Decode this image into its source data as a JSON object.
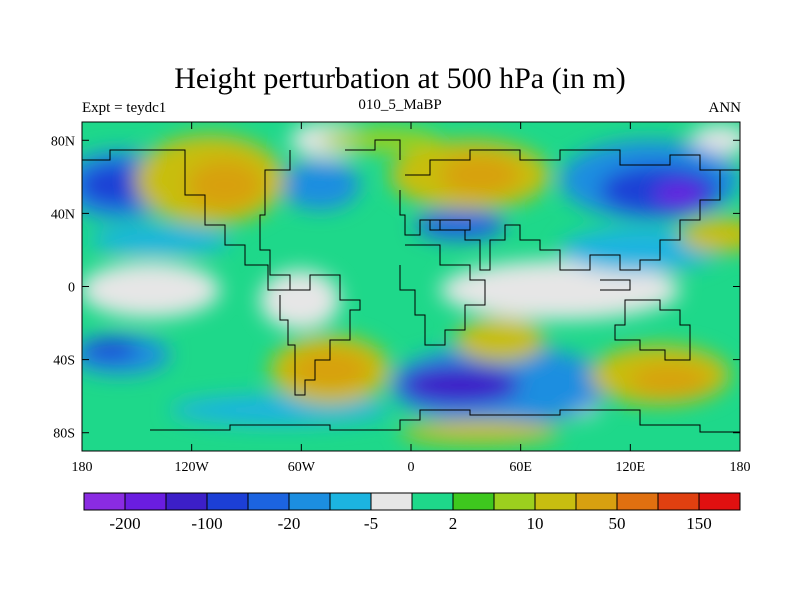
{
  "title": "Height perturbation at 500 hPa (in m)",
  "left_label": "Expt = teydc1",
  "center_label": "010_5_MaBP",
  "right_label": "ANN",
  "map": {
    "lon_range": [
      -180,
      180
    ],
    "lat_range": [
      -90,
      90
    ],
    "x_ticks": [
      {
        "value": -180,
        "label": "180"
      },
      {
        "value": -120,
        "label": "120W"
      },
      {
        "value": -60,
        "label": "60W"
      },
      {
        "value": 0,
        "label": "0"
      },
      {
        "value": 60,
        "label": "60E"
      },
      {
        "value": 120,
        "label": "120E"
      },
      {
        "value": 180,
        "label": "180"
      }
    ],
    "y_ticks": [
      {
        "value": 80,
        "label": "80N"
      },
      {
        "value": 40,
        "label": "40N"
      },
      {
        "value": 0,
        "label": "0"
      },
      {
        "value": -40,
        "label": "40S"
      },
      {
        "value": -80,
        "label": "80S"
      }
    ]
  },
  "colorbar": {
    "colors": [
      "#8a2be2",
      "#6a1de0",
      "#3c1fc8",
      "#1c3fd6",
      "#1c64e0",
      "#1c8ee0",
      "#1cb4e0",
      "#e6e6e6",
      "#1ed88a",
      "#3ec81e",
      "#9cd01e",
      "#c8be10",
      "#d8a010",
      "#e07010",
      "#e04010",
      "#e01010"
    ],
    "labels": [
      {
        "after_box": 1,
        "text": "-200"
      },
      {
        "after_box": 3,
        "text": "-100"
      },
      {
        "after_box": 5,
        "text": "-20"
      },
      {
        "after_box": 7,
        "text": "-5"
      },
      {
        "after_box": 9,
        "text": "2"
      },
      {
        "after_box": 11,
        "text": "10"
      },
      {
        "after_box": 13,
        "text": "50"
      },
      {
        "after_box": 15,
        "text": "150"
      }
    ]
  }
}
